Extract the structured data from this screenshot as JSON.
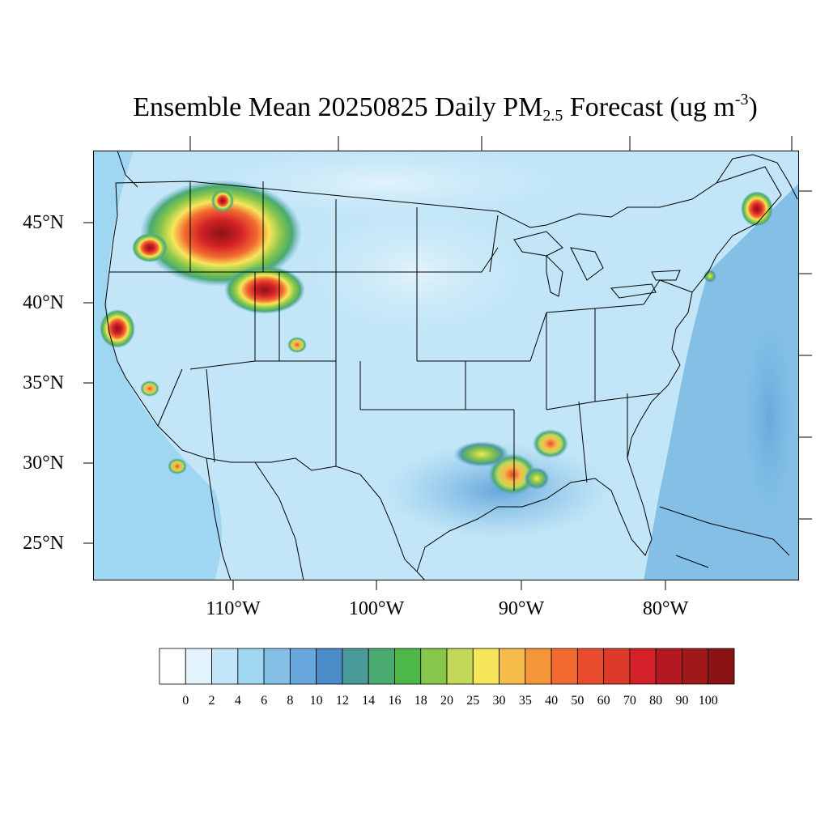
{
  "title": {
    "prefix": "Ensemble Mean 20250825 Daily PM",
    "subscript": "2.5",
    "middle": " Forecast (ug m",
    "superscript": "-3",
    "suffix": ")"
  },
  "axes": {
    "lat_labels": [
      "45°N",
      "40°N",
      "35°N",
      "30°N",
      "25°N"
    ],
    "lon_labels": [
      "110°W",
      "100°W",
      "90°W",
      "80°W"
    ]
  },
  "colorbar": {
    "labels": [
      "0",
      "2",
      "4",
      "6",
      "8",
      "10",
      "12",
      "14",
      "16",
      "18",
      "20",
      "25",
      "30",
      "35",
      "40",
      "50",
      "60",
      "70",
      "80",
      "90",
      "100"
    ],
    "colors": [
      "#ffffff",
      "#e2f3fb",
      "#c2e6f7",
      "#9fd6f2",
      "#84c0e6",
      "#68a8dc",
      "#4a8bc8",
      "#4a9a9a",
      "#4aaa70",
      "#4db848",
      "#86c64a",
      "#c2d85a",
      "#f6e65a",
      "#f6bc4a",
      "#f6963a",
      "#f26a30",
      "#e84c2c",
      "#dc3a2a",
      "#d42028",
      "#b41820",
      "#a01818",
      "#8a1414"
    ]
  },
  "map_colors": {
    "background": "#c2e6f7",
    "ocean_pacific": "#9fd6f2",
    "ocean_atlantic": "#84c0e6"
  }
}
